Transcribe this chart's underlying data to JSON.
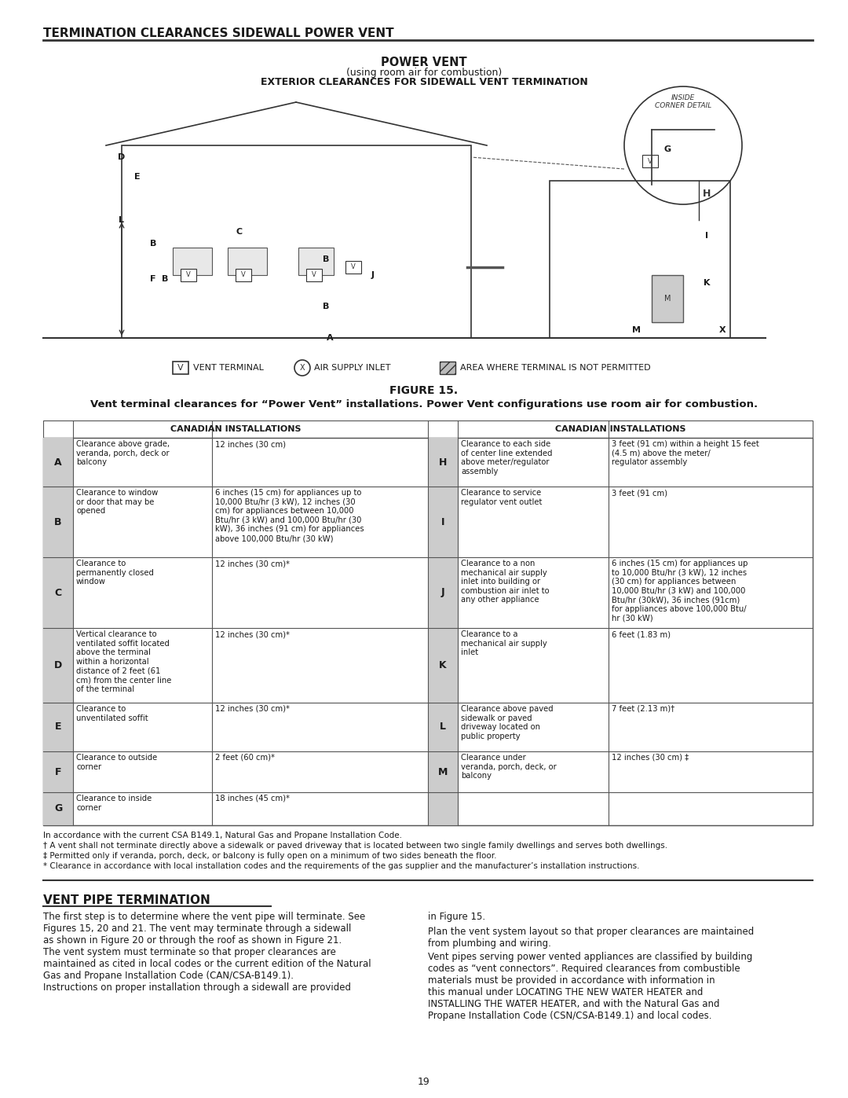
{
  "page_title": "TERMINATION CLEARANCES SIDEWALL POWER VENT",
  "figure_title": "POWER VENT",
  "figure_subtitle1": "(using room air for combustion)",
  "figure_subtitle2": "EXTERIOR CLEARANCES FOR SIDEWALL VENT TERMINATION",
  "figure_caption": "FIGURE 15.",
  "figure_desc": "Vent terminal clearances for “Power Vent” installations. Power Vent configurations use room air for combustion.",
  "table_header_left": "CANADIAN INSTALLATIONS",
  "table_header_right": "CANADIAN INSTALLATIONS",
  "table_rows": [
    {
      "letter": "A",
      "desc": "Clearance above grade,\nveranda, porch, deck or\nbalcony",
      "value": "12 inches (30 cm)"
    },
    {
      "letter": "B",
      "desc": "Clearance to window\nor door that may be\nopened",
      "value": "6 inches (15 cm) for appliances up to\n10,000 Btu/hr (3 kW), 12 inches (30\ncm) for appliances between 10,000\nBtu/hr (3 kW) and 100,000 Btu/hr (30\nkW), 36 inches (91 cm) for appliances\nabove 100,000 Btu/hr (30 kW)"
    },
    {
      "letter": "C",
      "desc": "Clearance to\npermanently closed\nwindow",
      "value": "12 inches (30 cm)*"
    },
    {
      "letter": "D",
      "desc": "Vertical clearance to\nventilated soffit located\nabove the terminal\nwithin a horizontal\ndistance of 2 feet (61\ncm) from the center line\nof the terminal",
      "value": "12 inches (30 cm)*"
    },
    {
      "letter": "E",
      "desc": "Clearance to\nunventilated soffit",
      "value": "12 inches (30 cm)*"
    },
    {
      "letter": "F",
      "desc": "Clearance to outside\ncorner",
      "value": "2 feet (60 cm)*"
    },
    {
      "letter": "G",
      "desc": "Clearance to inside\ncorner",
      "value": "18 inches (45 cm)*"
    }
  ],
  "table_rows_right": [
    {
      "letter": "H",
      "desc": "Clearance to each side\nof center line extended\nabove meter/regulator\nassembly",
      "value": "3 feet (91 cm) within a height 15 feet\n(4.5 m) above the meter/\nregulator assembly"
    },
    {
      "letter": "I",
      "desc": "Clearance to service\nregulator vent outlet",
      "value": "3 feet (91 cm)"
    },
    {
      "letter": "J",
      "desc": "Clearance to a non\nmechanical air supply\ninlet into building or\ncombustion air inlet to\nany other appliance",
      "value": "6 inches (15 cm) for appliances up\nto 10,000 Btu/hr (3 kW), 12 inches\n(30 cm) for appliances between\n10,000 Btu/hr (3 kW) and 100,000\nBtu/hr (30kW), 36 inches (91cm)\nfor appliances above 100,000 Btu/\nhr (30 kW)"
    },
    {
      "letter": "K",
      "desc": "Clearance to a\nmechanical air supply\ninlet",
      "value": "6 feet (1.83 m)"
    },
    {
      "letter": "L",
      "desc": "Clearance above paved\nsidewalk or paved\ndriveway located on\npublic property",
      "value": "7 feet (2.13 m)†"
    },
    {
      "letter": "M",
      "desc": "Clearance under\nveranda, porch, deck, or\nbalcony",
      "value": "12 inches (30 cm) ‡"
    }
  ],
  "footnotes": [
    "In accordance with the current CSA B149.1, Natural Gas and Propane Installation Code.",
    "† A vent shall not terminate directly above a sidewalk or paved driveway that is located between two single family dwellings and serves both dwellings.",
    "‡ Permitted only if veranda, porch, deck, or balcony is fully open on a minimum of two sides beneath the floor.",
    "* Clearance in accordance with local installation codes and the requirements of the gas supplier and the manufacturer’s installation instructions."
  ],
  "vent_pipe_title": "VENT PIPE TERMINATION",
  "vent_pipe_para1": "The first step is to determine where the vent pipe will terminate. See\nFigures 15, 20 and 21. The vent may terminate through a sidewall\nas shown in Figure 20 or through the roof as shown in Figure 21.",
  "vent_pipe_para2": "The vent system must terminate so that proper clearances are\nmaintained as cited in local codes or the current edition of the Natural\nGas and Propane Installation Code (CAN/CSA-B149.1).",
  "vent_pipe_para3": "Instructions on proper installation through a sidewall are provided",
  "vent_pipe_para4": "in Figure 15.",
  "vent_pipe_para5": "Plan the vent system layout so that proper clearances are maintained\nfrom plumbing and wiring.",
  "vent_pipe_para6": "Vent pipes serving power vented appliances are classified by building\ncodes as “vent connectors”. Required clearances from combustible\nmaterials must be provided in accordance with information in\nthis manual under LOCATING THE NEW WATER HEATER and\nINSTALLING THE WATER HEATER, and with the Natural Gas and\nPropane Installation Code (CSN/CSA-B149.1) and local codes.",
  "page_number": "19",
  "bg_color": "#ffffff",
  "text_color": "#1a1a1a",
  "table_border_color": "#555555",
  "header_bg_color": "#d0d0d0"
}
